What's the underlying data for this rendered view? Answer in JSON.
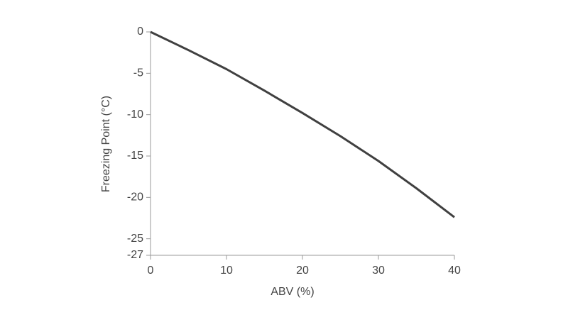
{
  "chart_data": {
    "type": "line",
    "x_label": "ABV (%)",
    "y_label": "Freezing Point (°C)",
    "x": [
      0,
      5,
      10,
      15,
      20,
      25,
      30,
      35,
      40
    ],
    "series": [
      {
        "name": "Freezing point",
        "color": "#404040",
        "values": [
          0,
          -2.2,
          -4.5,
          -7.1,
          -9.8,
          -12.6,
          -15.6,
          -18.9,
          -22.4
        ]
      }
    ],
    "xlim": [
      0,
      40
    ],
    "xticks": [
      0,
      10,
      20,
      30,
      40
    ],
    "ylim": [
      -27,
      0
    ],
    "yticks": [
      0,
      -5,
      -10,
      -15,
      -20,
      -25,
      -27
    ]
  }
}
